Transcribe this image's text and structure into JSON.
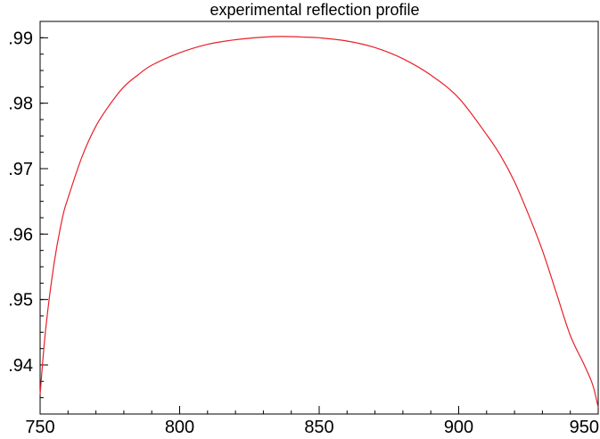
{
  "chart_data": {
    "type": "line",
    "title": "experimental reflection profile",
    "xlabel": "",
    "ylabel": "",
    "xlim": [
      750,
      950
    ],
    "ylim": [
      0.9325,
      0.9925
    ],
    "grid": false,
    "x_ticks": [
      750,
      800,
      850,
      900,
      950
    ],
    "x_tick_labels": [
      "750",
      "800",
      "850",
      "900",
      "950"
    ],
    "y_ticks": [
      0.94,
      0.95,
      0.96,
      0.97,
      0.98,
      0.99
    ],
    "y_tick_labels": [
      ".94",
      ".95",
      ".96",
      ".97",
      ".98",
      ".99"
    ],
    "series": [
      {
        "color": "#e8202a",
        "x": [
          750,
          752,
          755,
          758,
          760,
          765,
          770,
          775,
          780,
          785,
          790,
          800,
          810,
          820,
          830,
          837,
          845,
          850,
          860,
          870,
          880,
          890,
          900,
          910,
          915,
          920,
          925,
          930,
          935,
          940,
          945,
          948,
          950
        ],
        "y": [
          0.9355,
          0.9455,
          0.9555,
          0.9625,
          0.9655,
          0.9718,
          0.9765,
          0.9798,
          0.9825,
          0.9843,
          0.9858,
          0.9877,
          0.989,
          0.9897,
          0.9901,
          0.9902,
          0.9901,
          0.99,
          0.9895,
          0.9885,
          0.9868,
          0.9843,
          0.9808,
          0.9752,
          0.972,
          0.968,
          0.963,
          0.9575,
          0.951,
          0.9445,
          0.94,
          0.937,
          0.9335
        ]
      }
    ]
  }
}
